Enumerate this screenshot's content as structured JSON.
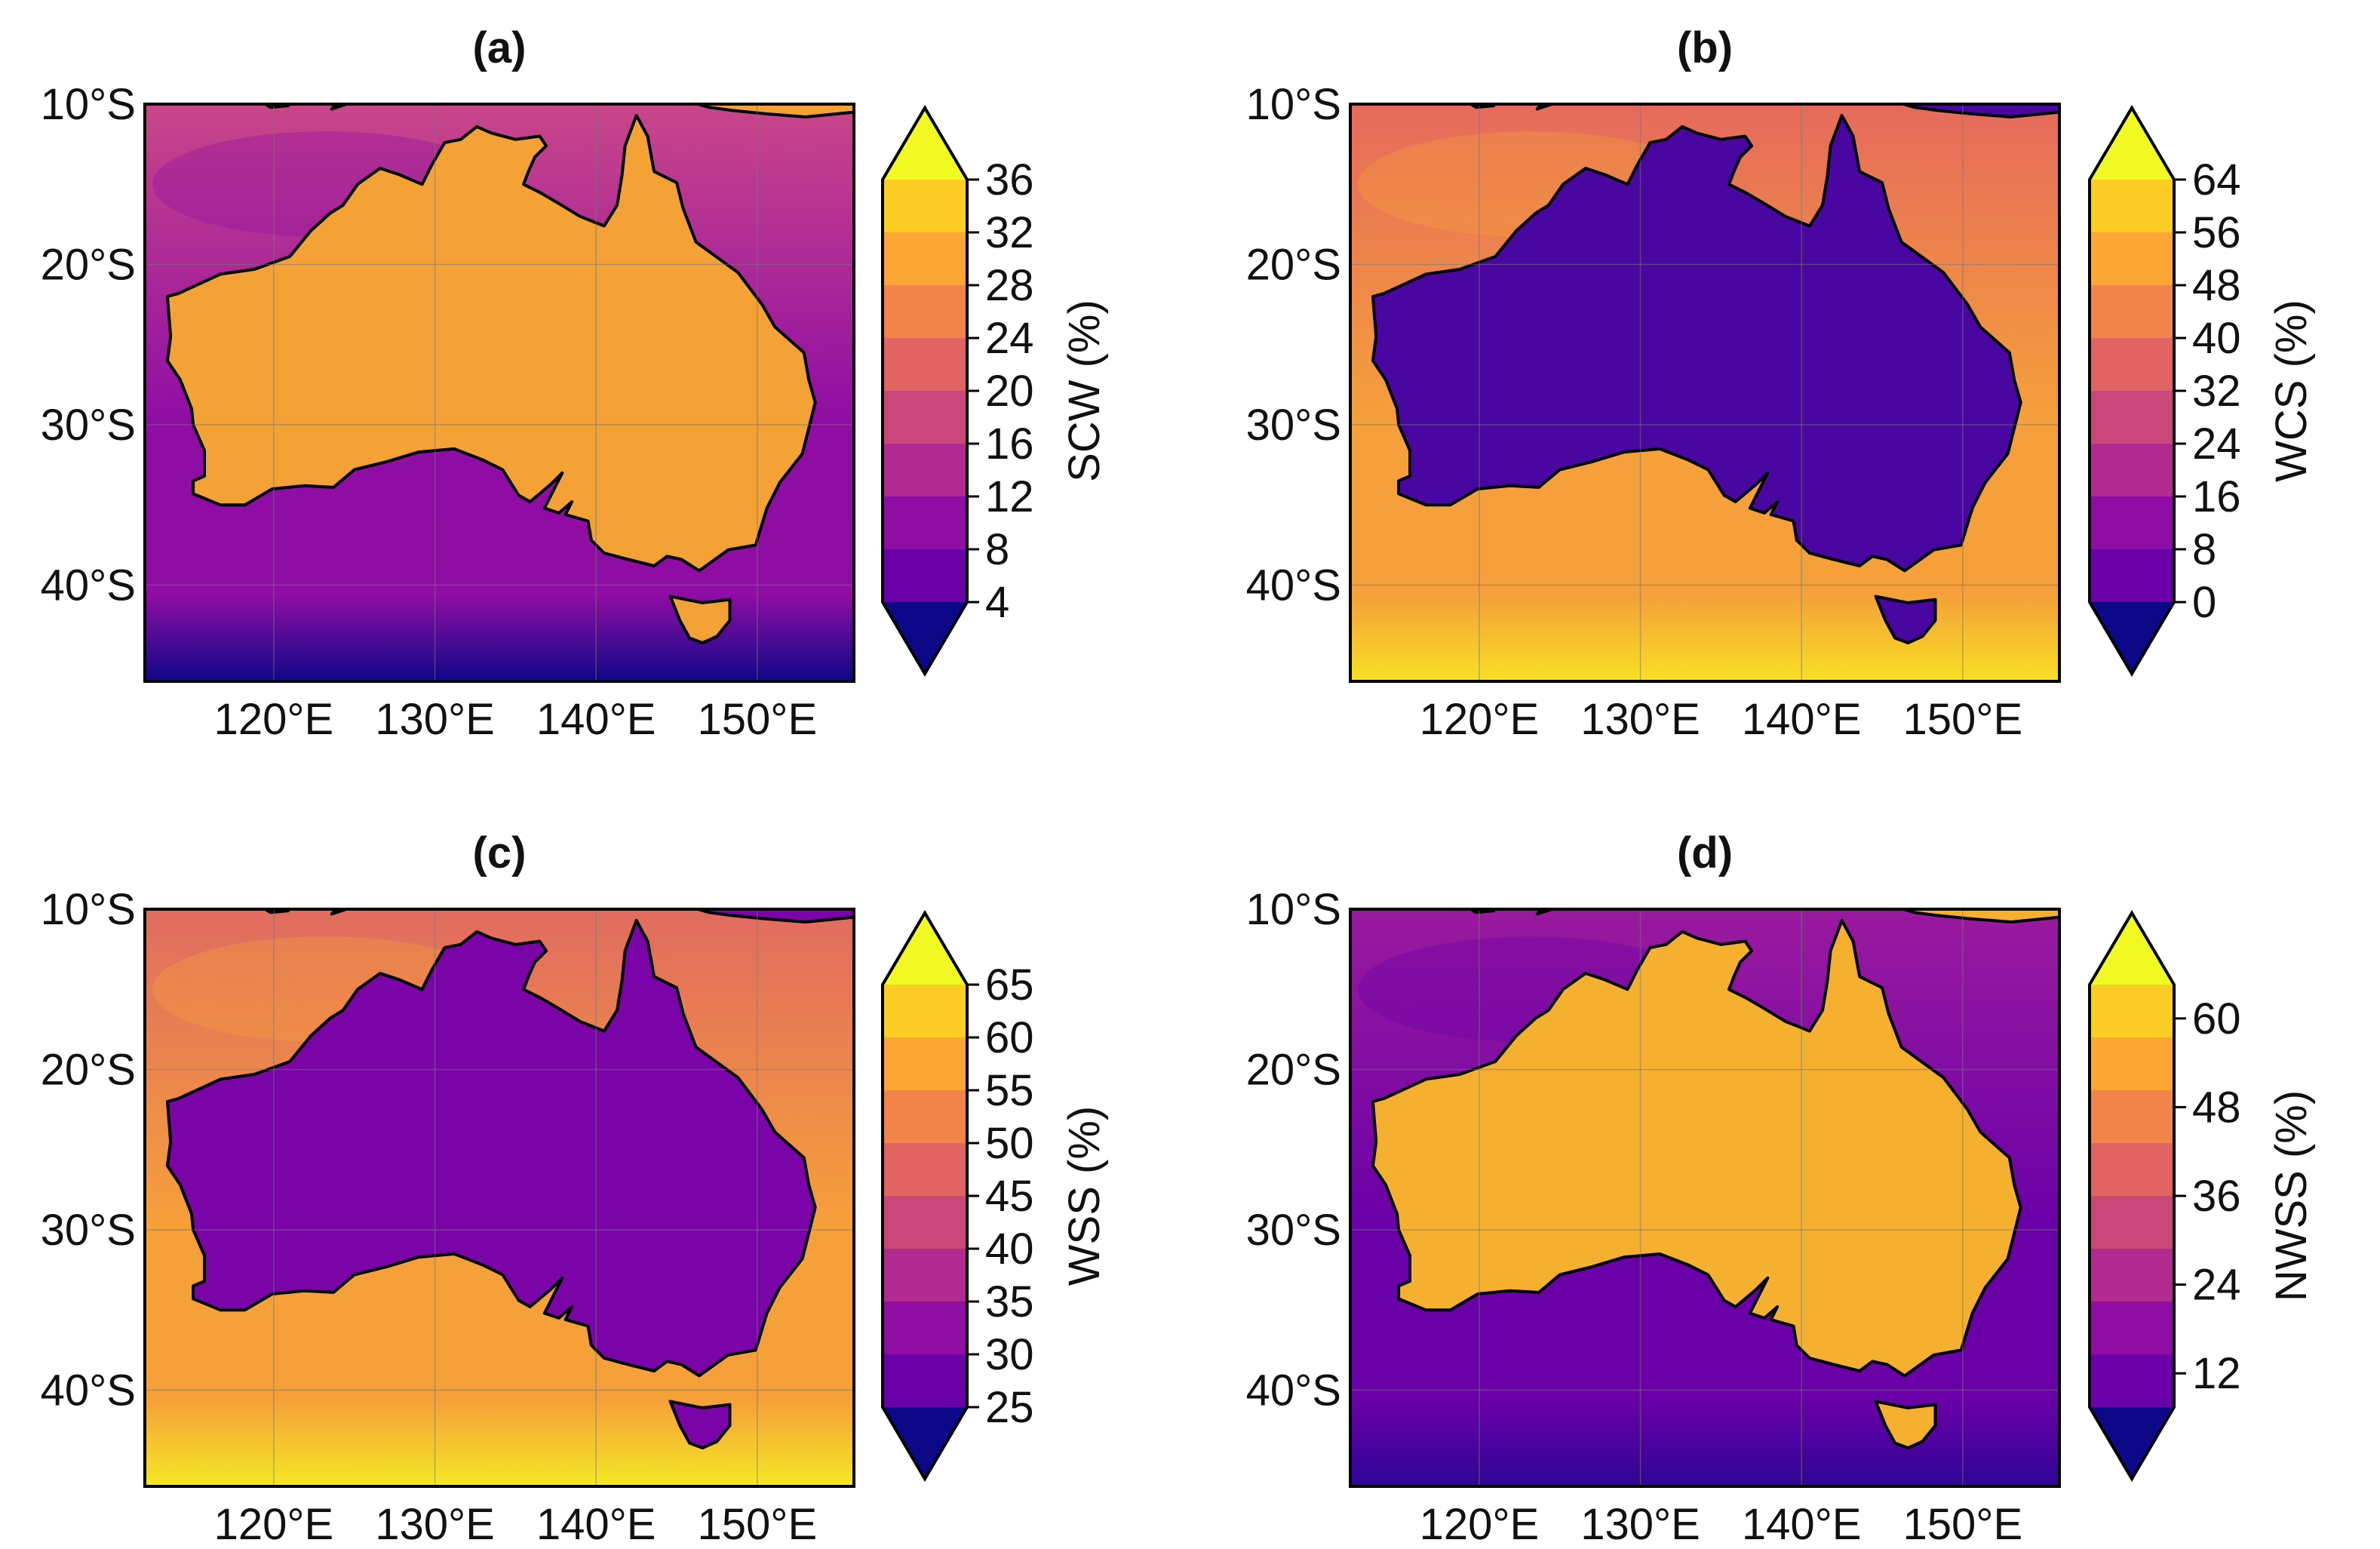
{
  "figure": {
    "lat_ticks": [
      "10°S",
      "20°S",
      "30°S",
      "40°S"
    ],
    "lon_ticks": [
      "120°E",
      "130°E",
      "140°E",
      "150°E"
    ]
  },
  "colors": {
    "palette": [
      "#0d0887",
      "#3d049b",
      "#6a00a8",
      "#8f0da4",
      "#b12a90",
      "#cb4679",
      "#e16462",
      "#f1834b",
      "#fca636",
      "#fcce25",
      "#f0f921"
    ]
  },
  "panels": [
    {
      "label": "(a)",
      "variable": "SCW (%)",
      "colorbar_ticks": [
        "36",
        "32",
        "28",
        "24",
        "20",
        "16",
        "12",
        "8",
        "4"
      ],
      "land_color": "#f4a236",
      "ocean_north": "#c9468a",
      "ocean_mid": "#8f0da4",
      "ocean_south": "#0d0887"
    },
    {
      "label": "(b)",
      "variable": "WCS (%)",
      "colorbar_ticks": [
        "64",
        "56",
        "48",
        "40",
        "32",
        "24",
        "16",
        "8",
        "0"
      ],
      "land_color": "#4a06a0",
      "ocean_north": "#e66a5c",
      "ocean_mid": "#f5a03a",
      "ocean_south": "#f8e024"
    },
    {
      "label": "(c)",
      "variable": "WSS (%)",
      "colorbar_ticks": [
        "65",
        "60",
        "55",
        "50",
        "45",
        "40",
        "35",
        "30",
        "25"
      ],
      "land_color": "#7a04a8",
      "ocean_north": "#e06b60",
      "ocean_mid": "#f6a03a",
      "ocean_south": "#f5e824"
    },
    {
      "label": "(d)",
      "variable": "NWSS (%)",
      "colorbar_ticks": [
        "60",
        "48",
        "36",
        "24",
        "12"
      ],
      "land_color": "#f6b030",
      "ocean_north": "#9a1a9e",
      "ocean_mid": "#6a00a8",
      "ocean_south": "#2e0595"
    }
  ]
}
